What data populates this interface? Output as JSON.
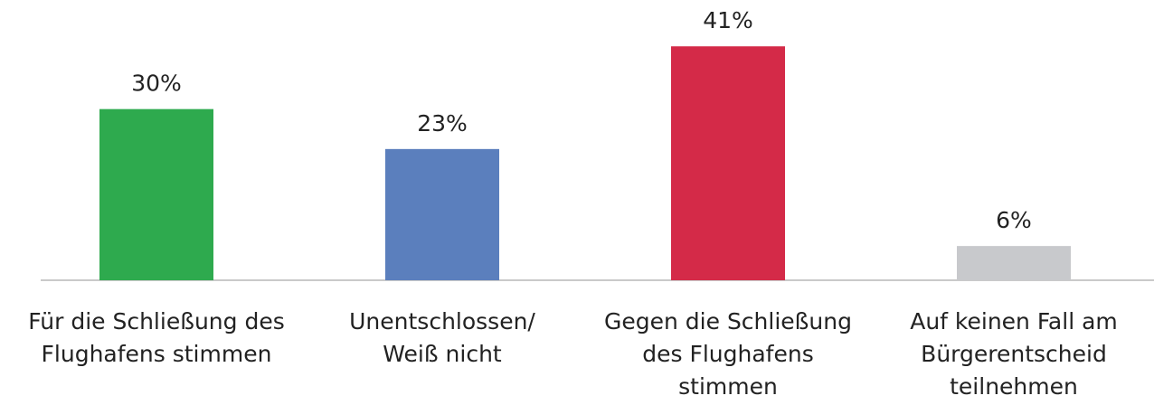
{
  "chart_data": {
    "type": "bar",
    "categories": [
      "Für die Schließung des\nFlughafens stimmen",
      "Unentschlossen/\nWeiß nicht",
      "Gegen die Schließung\ndes Flughafens\nstimmen",
      "Auf keinen Fall am\nBürgerentscheid\nteilnehmen"
    ],
    "values": [
      30,
      23,
      41,
      6
    ],
    "value_labels": [
      "30%",
      "23%",
      "41%",
      "6%"
    ],
    "colors": [
      "#2eaa4e",
      "#5b7fbd",
      "#d42a48",
      "#c8c9cc"
    ],
    "ylim": [
      0,
      45
    ]
  }
}
